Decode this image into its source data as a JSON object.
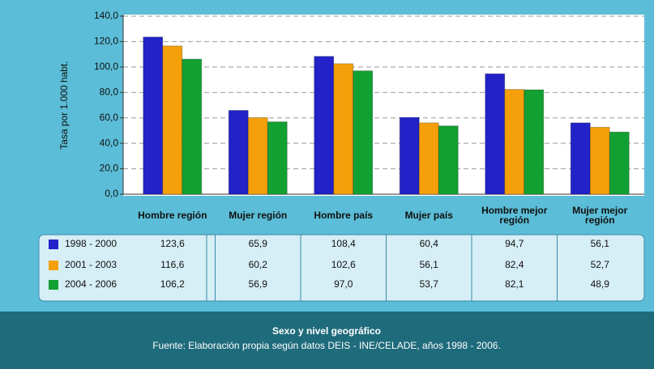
{
  "chart_data": {
    "type": "bar",
    "ylabel": "Tasa por 1.000 habt.",
    "xlabel": "Sexo y nivel geográfico",
    "source": "Fuente: Elaboración propia según datos DEIS - INE/CELADE, años 1998  - 2006.",
    "categories": [
      "Hombre región",
      "Mujer región",
      "Hombre país",
      "Mujer país",
      "Hombre mejor región",
      "Mujer mejor región"
    ],
    "series": [
      {
        "name": "1998 - 2000",
        "color": "#2222c8",
        "values": [
          123.6,
          65.9,
          108.4,
          60.4,
          94.7,
          56.1
        ],
        "value_labels": [
          "123,6",
          "65,9",
          "108,4",
          "60,4",
          "94,7",
          "56,1"
        ]
      },
      {
        "name": "2001 - 2003",
        "color": "#f5a00a",
        "values": [
          116.6,
          60.2,
          102.6,
          56.1,
          82.4,
          52.7
        ],
        "value_labels": [
          "116,6",
          "60,2",
          "102,6",
          "56,1",
          "82,4",
          "52,7"
        ]
      },
      {
        "name": "2004 - 2006",
        "color": "#13a032",
        "values": [
          106.2,
          56.9,
          97.0,
          53.7,
          82.1,
          48.9
        ],
        "value_labels": [
          "106,2",
          "56,9",
          "97,0",
          "53,7",
          "82,1",
          "48,9"
        ]
      }
    ],
    "ylim": [
      0,
      140
    ],
    "yticks": [
      {
        "value": 0,
        "label": "0,0"
      },
      {
        "value": 20,
        "label": "20,0"
      },
      {
        "value": 40,
        "label": "40,0"
      },
      {
        "value": 60,
        "label": "60,0"
      },
      {
        "value": 80,
        "label": "80,0"
      },
      {
        "value": 100,
        "label": "100,0"
      },
      {
        "value": 120,
        "label": "120,0"
      },
      {
        "value": 140,
        "label": "140,0"
      }
    ],
    "grid": true
  }
}
